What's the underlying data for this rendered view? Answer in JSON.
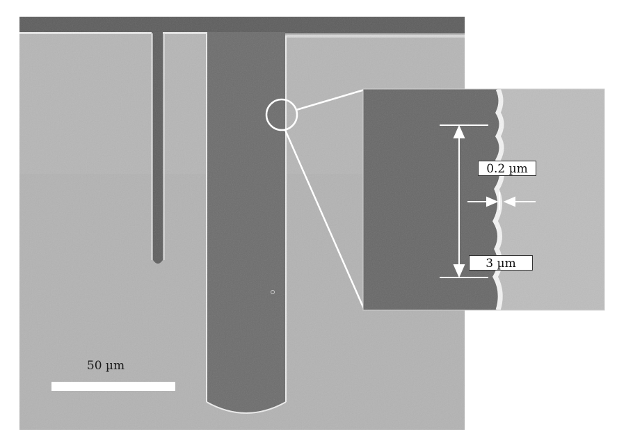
{
  "micrograph": {
    "scale_bar_label": "50 µm",
    "inset": {
      "roughness_label": "0.2 µm",
      "length_label": "3 µm"
    }
  },
  "colors": {
    "substrate": "#b4b4b4",
    "trench": "#6a6a6a",
    "top_edge": "#585858",
    "highlight": "#f2f2f2"
  }
}
